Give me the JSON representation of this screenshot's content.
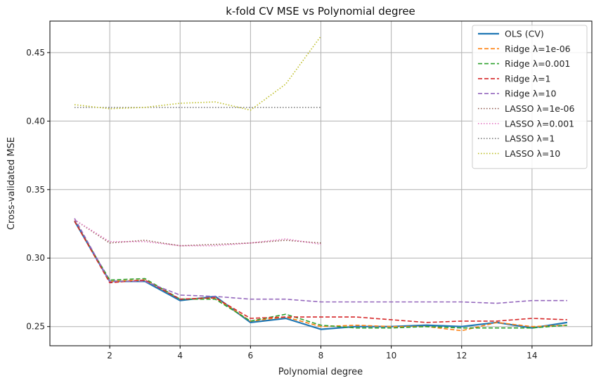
{
  "chart_data": {
    "type": "line",
    "title": "k-fold CV MSE vs Polynomial degree",
    "xlabel": "Polynomial degree",
    "ylabel": "Cross-validated MSE",
    "xlim": [
      0.3,
      15.7
    ],
    "ylim": [
      0.236,
      0.473
    ],
    "xticks": [
      2,
      4,
      6,
      8,
      10,
      12,
      14
    ],
    "yticks": [
      0.25,
      0.3,
      0.35,
      0.4,
      0.45
    ],
    "ytick_labels": [
      "0.25",
      "0.30",
      "0.35",
      "0.40",
      "0.45"
    ],
    "grid": true,
    "legend_position": "top-right",
    "series": [
      {
        "name": "OLS (CV)",
        "color": "#1f77b4",
        "style": "solid",
        "x": [
          1,
          2,
          3,
          4,
          5,
          6,
          7,
          8,
          9,
          10,
          11,
          12,
          13,
          14,
          15
        ],
        "y": [
          0.327,
          0.283,
          0.283,
          0.269,
          0.272,
          0.253,
          0.256,
          0.248,
          0.25,
          0.25,
          0.251,
          0.25,
          0.253,
          0.249,
          0.253
        ]
      },
      {
        "name": "Ridge λ=1e-06",
        "color": "#ff7f0e",
        "style": "dashed",
        "x": [
          1,
          2,
          3,
          4,
          5,
          6,
          7,
          8,
          9,
          10,
          11,
          12,
          13,
          14,
          15
        ],
        "y": [
          0.327,
          0.283,
          0.284,
          0.27,
          0.271,
          0.254,
          0.257,
          0.25,
          0.251,
          0.25,
          0.25,
          0.247,
          0.253,
          0.25,
          0.251
        ]
      },
      {
        "name": "Ridge λ=0.001",
        "color": "#2ca02c",
        "style": "dashed",
        "x": [
          1,
          2,
          3,
          4,
          5,
          6,
          7,
          8,
          9,
          10,
          11,
          12,
          13,
          14,
          15
        ],
        "y": [
          0.327,
          0.284,
          0.285,
          0.27,
          0.27,
          0.254,
          0.259,
          0.251,
          0.249,
          0.249,
          0.25,
          0.249,
          0.249,
          0.249,
          0.251
        ]
      },
      {
        "name": "Ridge λ=1",
        "color": "#d62728",
        "style": "dashed",
        "x": [
          1,
          2,
          3,
          4,
          5,
          6,
          7,
          8,
          9,
          10,
          11,
          12,
          13,
          14,
          15
        ],
        "y": [
          0.327,
          0.282,
          0.284,
          0.27,
          0.271,
          0.256,
          0.257,
          0.257,
          0.257,
          0.255,
          0.253,
          0.254,
          0.254,
          0.256,
          0.255
        ]
      },
      {
        "name": "Ridge λ=10",
        "color": "#9467bd",
        "style": "dashed",
        "x": [
          1,
          2,
          3,
          4,
          5,
          6,
          7,
          8,
          9,
          10,
          11,
          12,
          13,
          14,
          15
        ],
        "y": [
          0.329,
          0.283,
          0.283,
          0.273,
          0.272,
          0.27,
          0.27,
          0.268,
          0.268,
          0.268,
          0.268,
          0.268,
          0.267,
          0.269,
          0.269
        ]
      },
      {
        "name": "LASSO λ=1e-06",
        "color": "#8c564b",
        "style": "dotted",
        "x": [
          1,
          2,
          3,
          4,
          5,
          6,
          7,
          8
        ],
        "y": [
          0.328,
          0.311,
          0.313,
          0.309,
          0.31,
          0.311,
          0.313,
          0.311
        ]
      },
      {
        "name": "LASSO λ=0.001",
        "color": "#e377c2",
        "style": "dotted",
        "x": [
          1,
          2,
          3,
          4,
          5,
          6,
          7,
          8
        ],
        "y": [
          0.328,
          0.312,
          0.312,
          0.309,
          0.309,
          0.311,
          0.314,
          0.31
        ]
      },
      {
        "name": "LASSO λ=1",
        "color": "#7f7f7f",
        "style": "dotted",
        "x": [
          1,
          2,
          3,
          4,
          5,
          6,
          7,
          8
        ],
        "y": [
          0.41,
          0.41,
          0.41,
          0.41,
          0.41,
          0.41,
          0.41,
          0.41
        ]
      },
      {
        "name": "LASSO λ=10",
        "color": "#bcbd22",
        "style": "dotted",
        "x": [
          1,
          2,
          3,
          4,
          5,
          6,
          7,
          8
        ],
        "y": [
          0.412,
          0.409,
          0.41,
          0.413,
          0.414,
          0.408,
          0.427,
          0.462
        ]
      }
    ]
  }
}
